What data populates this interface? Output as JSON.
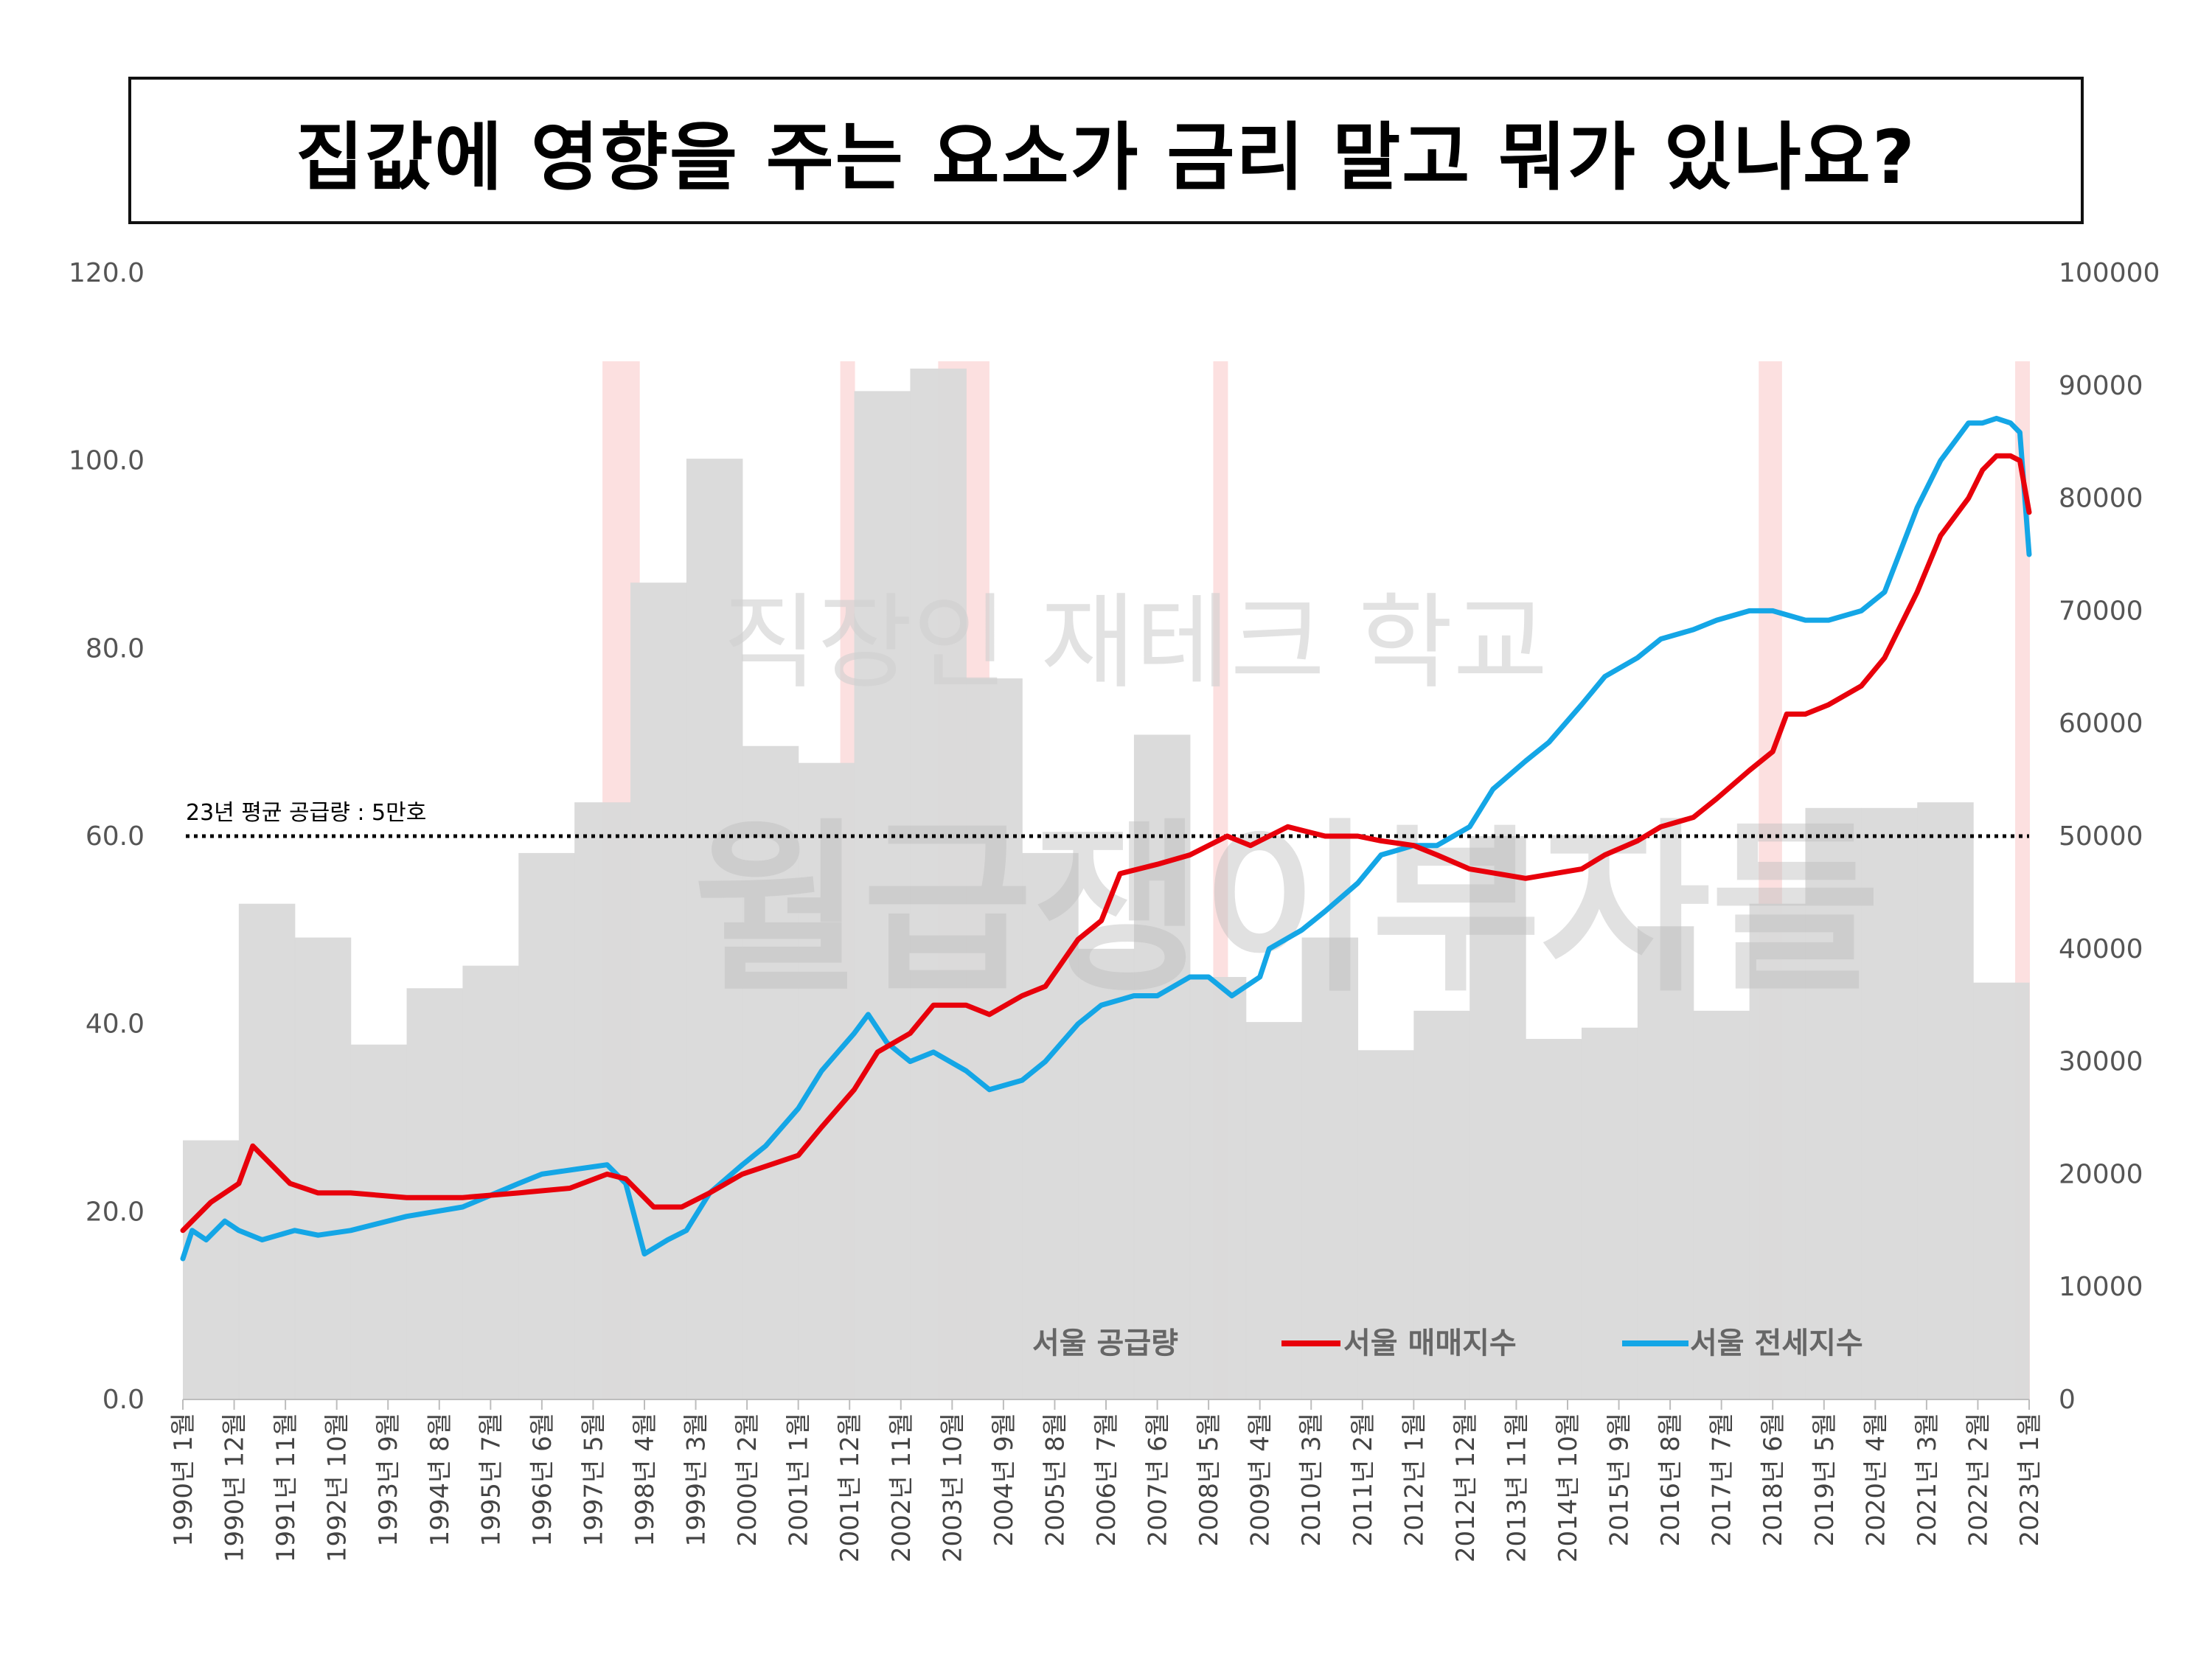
{
  "title": "집값에 영향을 주는 요소가 금리 말고 뭐가 있나요?",
  "watermark": {
    "line1": "직장인 재테크 학교",
    "line2": "월급쟁이부자들"
  },
  "chart_data": {
    "type": "line+area",
    "x_start": "1990-01",
    "x_end": "2023-01",
    "y_left": {
      "min": 0,
      "max": 120,
      "ticks": [
        "0.0",
        "20.0",
        "40.0",
        "60.0",
        "80.0",
        "100.0",
        "120.0"
      ]
    },
    "y_right": {
      "min": 0,
      "max": 100000,
      "ticks": [
        "0",
        "10000",
        "20000",
        "30000",
        "40000",
        "50000",
        "60000",
        "70000",
        "80000",
        "90000",
        "100000"
      ]
    },
    "x_ticks": [
      "1990년 1월",
      "1990년 12월",
      "1991년 11월",
      "1992년 10월",
      "1993년 9월",
      "1994년 8월",
      "1995년 7월",
      "1996년 6월",
      "1997년 5월",
      "1998년 4월",
      "1999년 3월",
      "2000년 2월",
      "2001년 1월",
      "2001년 12월",
      "2002년 11월",
      "2003년 10월",
      "2004년 9월",
      "2005년 8월",
      "2006년 7월",
      "2007년 6월",
      "2008년 5월",
      "2009년 4월",
      "2010년 3월",
      "2011년 2월",
      "2012년 1월",
      "2012년 12월",
      "2013년 11월",
      "2014년 10월",
      "2015년 9월",
      "2016년 8월",
      "2017년 7월",
      "2018년 6월",
      "2019년 5월",
      "2020년 4월",
      "2021년 3월",
      "2022년 2월",
      "2023년 1월"
    ],
    "supply": {
      "name": "서울 공급량",
      "color": "#d9d9d9",
      "years": [
        1990,
        1991,
        1992,
        1993,
        1994,
        1995,
        1996,
        1997,
        1998,
        1999,
        2000,
        2001,
        2002,
        2003,
        2004,
        2005,
        2006,
        2007,
        2008,
        2009,
        2010,
        2011,
        2012,
        2013,
        2014,
        2015,
        2016,
        2017,
        2018,
        2019,
        2020,
        2021,
        2022
      ],
      "values": [
        23000,
        44000,
        41000,
        31500,
        36500,
        38500,
        48500,
        53000,
        72500,
        83500,
        58000,
        56500,
        89500,
        91500,
        64000,
        48500,
        40000,
        59000,
        37500,
        33500,
        41000,
        31000,
        34500,
        50000,
        32000,
        33000,
        42000,
        34500,
        44000,
        52500,
        52500,
        53000,
        37000
      ]
    },
    "sale_index": {
      "name": "서울 매매지수",
      "color": "#e8000b",
      "x": [
        "1990-01",
        "1990-07",
        "1991-01",
        "1991-04",
        "1991-12",
        "1992-06",
        "1993-01",
        "1994-01",
        "1995-01",
        "1996-01",
        "1996-12",
        "1997-08",
        "1997-12",
        "1998-06",
        "1998-12",
        "1999-06",
        "2000-01",
        "2001-01",
        "2001-06",
        "2002-01",
        "2002-06",
        "2003-01",
        "2003-06",
        "2004-01",
        "2004-06",
        "2005-01",
        "2005-06",
        "2006-01",
        "2006-06",
        "2006-10",
        "2007-06",
        "2008-01",
        "2008-09",
        "2009-02",
        "2009-10",
        "2010-06",
        "2011-01",
        "2011-06",
        "2012-01",
        "2012-06",
        "2013-01",
        "2014-01",
        "2015-01",
        "2015-06",
        "2016-01",
        "2016-06",
        "2017-01",
        "2017-06",
        "2018-01",
        "2018-06",
        "2018-09",
        "2019-01",
        "2019-06",
        "2020-01",
        "2020-06",
        "2021-01",
        "2021-06",
        "2021-12",
        "2022-03",
        "2022-06",
        "2022-09",
        "2022-11",
        "2023-01"
      ],
      "values": [
        18,
        21,
        23,
        27,
        23,
        22,
        22,
        21.5,
        21.5,
        22,
        22.5,
        24,
        23.5,
        20.5,
        20.5,
        22,
        24,
        26,
        29,
        33,
        37,
        39,
        42,
        42,
        41,
        43,
        44,
        49,
        51,
        56,
        57,
        58,
        60,
        59,
        61,
        60,
        60,
        59.5,
        59,
        58,
        56.5,
        55.5,
        56.5,
        58,
        59.5,
        61,
        62,
        64,
        67,
        69,
        73,
        73,
        74,
        76,
        79,
        86,
        92,
        96,
        99,
        100.5,
        100.5,
        100,
        94.5
      ]
    },
    "jeonse_index": {
      "name": "서울 전세지수",
      "color": "#14a6e6",
      "x": [
        "1990-01",
        "1990-03",
        "1990-06",
        "1990-10",
        "1991-01",
        "1991-06",
        "1992-01",
        "1992-06",
        "1993-01",
        "1994-01",
        "1995-01",
        "1996-01",
        "1996-06",
        "1997-01",
        "1997-08",
        "1997-12",
        "1998-04",
        "1998-09",
        "1999-01",
        "1999-06",
        "2000-01",
        "2000-06",
        "2001-01",
        "2001-06",
        "2002-01",
        "2002-04",
        "2002-08",
        "2003-01",
        "2003-06",
        "2004-01",
        "2004-06",
        "2005-01",
        "2005-06",
        "2006-01",
        "2006-06",
        "2007-01",
        "2007-06",
        "2008-01",
        "2008-05",
        "2008-10",
        "2009-04",
        "2009-06",
        "2010-01",
        "2010-06",
        "2011-01",
        "2011-06",
        "2012-01",
        "2012-06",
        "2013-01",
        "2013-06",
        "2014-01",
        "2014-06",
        "2015-01",
        "2015-06",
        "2016-01",
        "2016-06",
        "2017-01",
        "2017-06",
        "2018-01",
        "2018-06",
        "2019-01",
        "2019-06",
        "2020-01",
        "2020-06",
        "2021-01",
        "2021-06",
        "2021-12",
        "2022-03",
        "2022-06",
        "2022-09",
        "2022-11",
        "2023-01"
      ],
      "values": [
        15,
        18,
        17,
        19,
        18,
        17,
        18,
        17.5,
        18,
        19.5,
        20.5,
        23,
        24,
        24.5,
        25,
        23,
        15.5,
        17,
        18,
        22,
        25,
        27,
        31,
        35,
        39,
        41,
        38,
        36,
        37,
        35,
        33,
        34,
        36,
        40,
        42,
        43,
        43,
        45,
        45,
        43,
        45,
        48,
        50,
        52,
        55,
        58,
        59,
        59,
        61,
        65,
        68,
        70,
        74,
        77,
        79,
        81,
        82,
        83,
        84,
        84,
        83,
        83,
        84,
        86,
        95,
        100,
        104,
        104,
        104.5,
        104,
        103,
        90
      ]
    },
    "recession_bands": [
      [
        "1997-07",
        "1998-03"
      ],
      [
        "2001-10",
        "2002-01"
      ],
      [
        "2003-07",
        "2004-06"
      ],
      [
        "2008-06",
        "2008-09"
      ],
      [
        "2018-03",
        "2018-08"
      ],
      [
        "2022-10",
        "2023-01"
      ]
    ],
    "reference_line": {
      "label": "23년 평균 공급량 : 5만호",
      "value": 50000
    },
    "legend_placement": "bottom"
  }
}
